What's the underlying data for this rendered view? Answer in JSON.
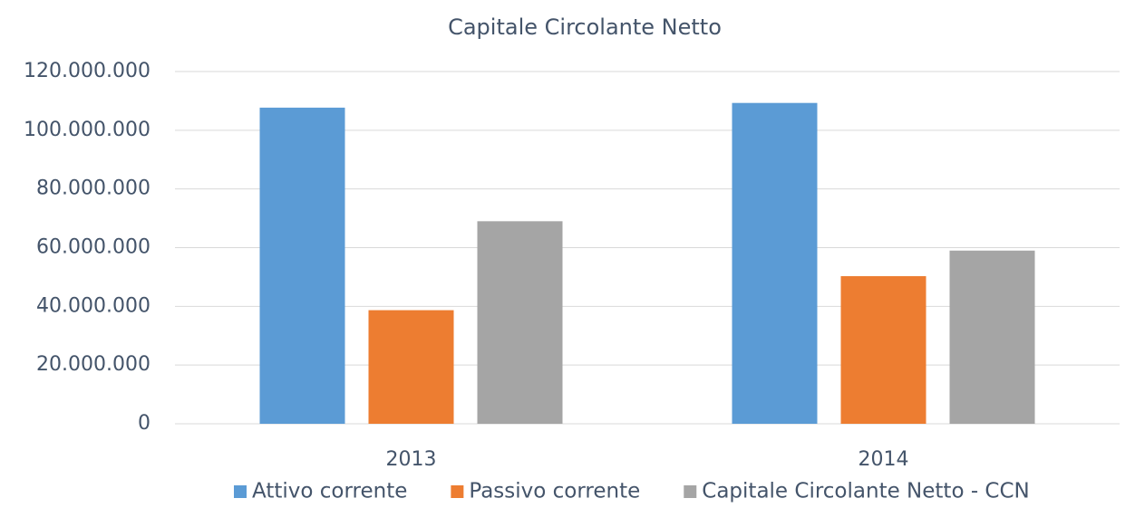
{
  "chart_data": {
    "type": "bar",
    "title": "Capitale Circolante Netto",
    "categories": [
      "2013",
      "2014"
    ],
    "series": [
      {
        "name": "Attivo corrente",
        "color": "#5b9bd5",
        "values": [
          107700000,
          109300000
        ]
      },
      {
        "name": "Passivo corrente",
        "color": "#ed7d31",
        "values": [
          38700000,
          50300000
        ]
      },
      {
        "name": "Capitale Circolante Netto - CCN",
        "color": "#a5a5a5",
        "values": [
          69000000,
          59000000
        ]
      }
    ],
    "ylim": [
      0,
      120000000
    ],
    "yticks": [
      0,
      {
        "value": 20000000,
        "label": "20.000.000"
      },
      {
        "value": 40000000,
        "label": "40.000.000"
      },
      {
        "value": 60000000,
        "label": "60.000.000"
      },
      {
        "value": 80000000,
        "label": "80.000.000"
      },
      {
        "value": 100000000,
        "label": "100.000.000"
      },
      {
        "value": 120000000,
        "label": "120.000.000"
      }
    ],
    "grid": true,
    "legend": "bottom"
  }
}
